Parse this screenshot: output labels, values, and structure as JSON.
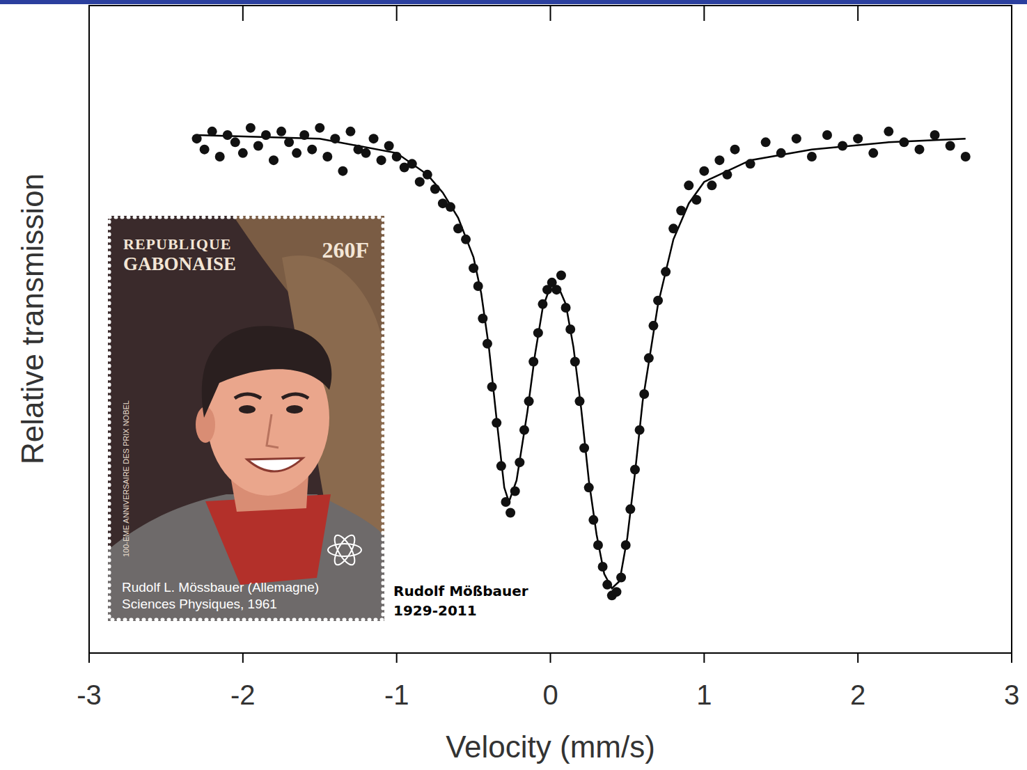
{
  "chart_data": {
    "type": "scatter",
    "x_label": "Velocity (mm/s)",
    "y_label": "Relative transmission",
    "xlim": [
      -3,
      3
    ],
    "xticks": [
      -3,
      -2,
      -1,
      0,
      1,
      2,
      3
    ],
    "ylim": [
      0.86,
      1.04
    ],
    "yticks": [],
    "tick_labels": "x",
    "grid": false,
    "series": [
      {
        "type": "line",
        "color": "#000000",
        "line_style": "solid",
        "x": [
          -2.3,
          -1.5,
          -1.0,
          -0.8,
          -0.7,
          -0.6,
          -0.5,
          -0.45,
          -0.4,
          -0.35,
          -0.3,
          -0.27,
          -0.22,
          -0.15,
          -0.1,
          -0.05,
          0,
          0.05,
          0.1,
          0.15,
          0.2,
          0.25,
          0.3,
          0.35,
          0.4,
          0.45,
          0.5,
          0.55,
          0.6,
          0.7,
          0.8,
          0.9,
          1.0,
          1.3,
          1.7,
          2.2,
          2.7
        ],
        "values": [
          1.004,
          1.003,
          0.999,
          0.993,
          0.988,
          0.981,
          0.97,
          0.96,
          0.945,
          0.925,
          0.906,
          0.902,
          0.908,
          0.927,
          0.943,
          0.956,
          0.962,
          0.962,
          0.957,
          0.945,
          0.928,
          0.908,
          0.893,
          0.882,
          0.878,
          0.88,
          0.892,
          0.91,
          0.93,
          0.957,
          0.975,
          0.985,
          0.991,
          0.997,
          1.0,
          1.002,
          1.003
        ]
      },
      {
        "type": "scatter",
        "color": "#111111",
        "marker": "circle",
        "x": [
          -2.3,
          -2.25,
          -2.2,
          -2.15,
          -2.1,
          -2.05,
          -2.0,
          -1.95,
          -1.9,
          -1.85,
          -1.8,
          -1.75,
          -1.7,
          -1.65,
          -1.6,
          -1.55,
          -1.5,
          -1.45,
          -1.4,
          -1.35,
          -1.3,
          -1.25,
          -1.2,
          -1.15,
          -1.1,
          -1.05,
          -1.0,
          -0.95,
          -0.9,
          -0.85,
          -0.8,
          -0.75,
          -0.7,
          -0.65,
          -0.6,
          -0.55,
          -0.5,
          -0.47,
          -0.44,
          -0.41,
          -0.38,
          -0.35,
          -0.32,
          -0.29,
          -0.26,
          -0.23,
          -0.2,
          -0.17,
          -0.14,
          -0.11,
          -0.08,
          -0.05,
          -0.02,
          0.01,
          0.04,
          0.07,
          0.1,
          0.13,
          0.16,
          0.19,
          0.22,
          0.25,
          0.28,
          0.31,
          0.34,
          0.37,
          0.4,
          0.43,
          0.46,
          0.49,
          0.52,
          0.55,
          0.58,
          0.61,
          0.64,
          0.67,
          0.7,
          0.75,
          0.8,
          0.85,
          0.9,
          0.95,
          1.0,
          1.05,
          1.1,
          1.15,
          1.2,
          1.3,
          1.4,
          1.5,
          1.6,
          1.7,
          1.8,
          1.9,
          2.0,
          2.1,
          2.2,
          2.3,
          2.4,
          2.5,
          2.6,
          2.7
        ],
        "values": [
          1.003,
          1.0,
          1.005,
          0.998,
          1.004,
          1.002,
          0.999,
          1.006,
          1.001,
          1.004,
          0.997,
          1.005,
          1.002,
          0.999,
          1.004,
          1.0,
          1.006,
          0.998,
          1.003,
          0.994,
          1.005,
          1.0,
          0.999,
          1.003,
          0.997,
          1.001,
          0.998,
          0.995,
          0.996,
          0.991,
          0.993,
          0.989,
          0.985,
          0.984,
          0.978,
          0.975,
          0.967,
          0.962,
          0.953,
          0.946,
          0.934,
          0.924,
          0.912,
          0.902,
          0.899,
          0.905,
          0.913,
          0.922,
          0.93,
          0.941,
          0.949,
          0.957,
          0.961,
          0.963,
          0.961,
          0.965,
          0.956,
          0.95,
          0.941,
          0.93,
          0.917,
          0.906,
          0.897,
          0.89,
          0.884,
          0.879,
          0.876,
          0.877,
          0.881,
          0.89,
          0.9,
          0.911,
          0.922,
          0.932,
          0.942,
          0.951,
          0.958,
          0.966,
          0.978,
          0.983,
          0.99,
          0.986,
          0.994,
          0.99,
          0.997,
          0.993,
          1.0,
          0.996,
          1.002,
          0.999,
          1.003,
          0.998,
          1.004,
          1.001,
          1.003,
          0.999,
          1.005,
          1.002,
          1.0,
          1.004,
          1.001,
          0.998
        ]
      }
    ],
    "inset": {
      "country_lines": [
        "REPUBLIQUE",
        "GABONAISE"
      ],
      "value": "260F",
      "side_text": "100-EME ANNIVERSAIRE DES PRIX NOBEL",
      "caption_lines": [
        "Rudolf L. Mössbauer (Allemagne)",
        "Sciences Physiques, 1961"
      ]
    },
    "annotation_lines": [
      "Rudolf Mößbauer",
      "1929-2011"
    ]
  }
}
